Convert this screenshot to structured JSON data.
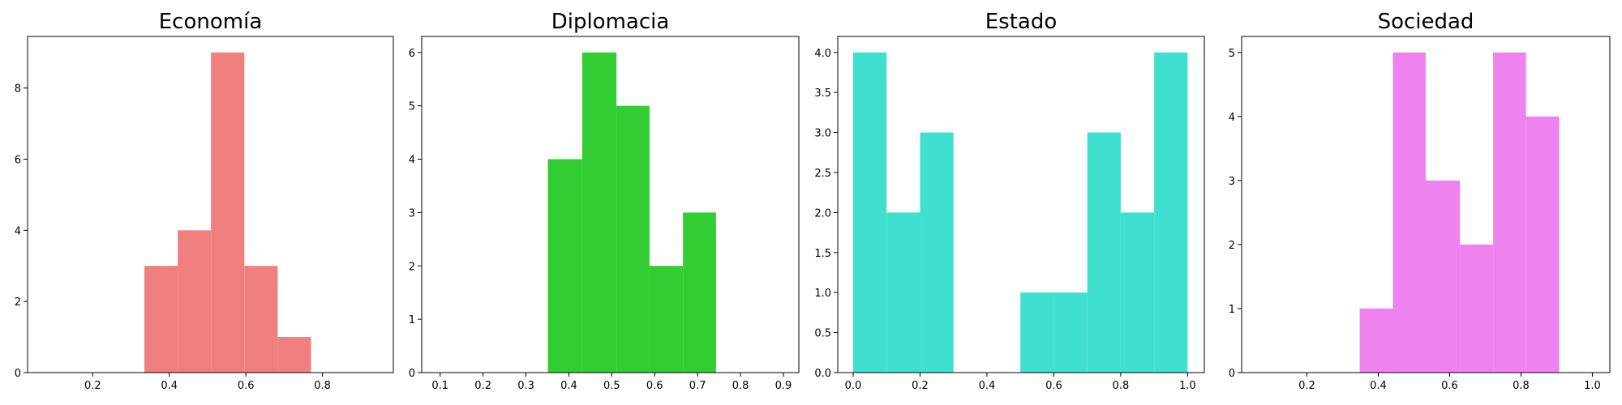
{
  "chart_data": [
    {
      "type": "histogram",
      "title": "Economía",
      "color": "#f08080",
      "bins": [
        0.335,
        0.422,
        0.509,
        0.596,
        0.683,
        0.77
      ],
      "counts": [
        3,
        4,
        9,
        3,
        1
      ],
      "xlim": [
        0.03,
        0.985
      ],
      "ylim": [
        0,
        9.45
      ],
      "xticks": [
        0.2,
        0.4,
        0.6,
        0.8
      ],
      "yticks": [
        0,
        2,
        4,
        6,
        8
      ]
    },
    {
      "type": "histogram",
      "title": "Diplomacia",
      "color": "#32cd32",
      "bins": [
        0.351,
        0.431,
        0.511,
        0.588,
        0.666,
        0.743
      ],
      "counts": [
        4,
        6,
        5,
        2,
        3
      ],
      "xlim": [
        0.057,
        0.936
      ],
      "ylim": [
        0,
        6.3
      ],
      "xticks": [
        0.1,
        0.2,
        0.3,
        0.4,
        0.5,
        0.6,
        0.7,
        0.8,
        0.9
      ],
      "yticks": [
        0,
        1,
        2,
        3,
        4,
        5,
        6
      ]
    },
    {
      "type": "histogram",
      "title": "Estado",
      "color": "#40e0d0",
      "bins": [
        0,
        0.1,
        0.2,
        0.3,
        0.4,
        0.5,
        0.6,
        0.7,
        0.8,
        0.9,
        1
      ],
      "counts": [
        4,
        2,
        3,
        0,
        0,
        1,
        1,
        3,
        2,
        4
      ],
      "xlim": [
        -0.046,
        1.05
      ],
      "ylim": [
        0,
        4.2
      ],
      "xticks": [
        {
          "value": 0,
          "label": "0.0"
        },
        0.2,
        0.4,
        0.6,
        0.8,
        {
          "value": 1,
          "label": "1.0"
        }
      ],
      "yticks": [
        {
          "value": 0,
          "label": "0.0"
        },
        0.5,
        {
          "value": 1,
          "label": "1.0"
        },
        1.5,
        {
          "value": 2,
          "label": "2.0"
        },
        2.5,
        {
          "value": 3,
          "label": "3.0"
        },
        3.5,
        {
          "value": 4,
          "label": "4.0"
        }
      ]
    },
    {
      "type": "histogram",
      "title": "Sociedad",
      "color": "#ee82ee",
      "bins": [
        0.348,
        0.441,
        0.533,
        0.629,
        0.722,
        0.814,
        0.907
      ],
      "counts": [
        1,
        5,
        3,
        2,
        5,
        4
      ],
      "xlim": [
        0.017,
        1.049
      ],
      "ylim": [
        0,
        5.25
      ],
      "xticks": [
        0.2,
        0.4,
        0.6,
        0.8,
        {
          "value": 1,
          "label": "1.0"
        }
      ],
      "yticks": [
        0,
        1,
        2,
        3,
        4,
        5
      ]
    }
  ]
}
